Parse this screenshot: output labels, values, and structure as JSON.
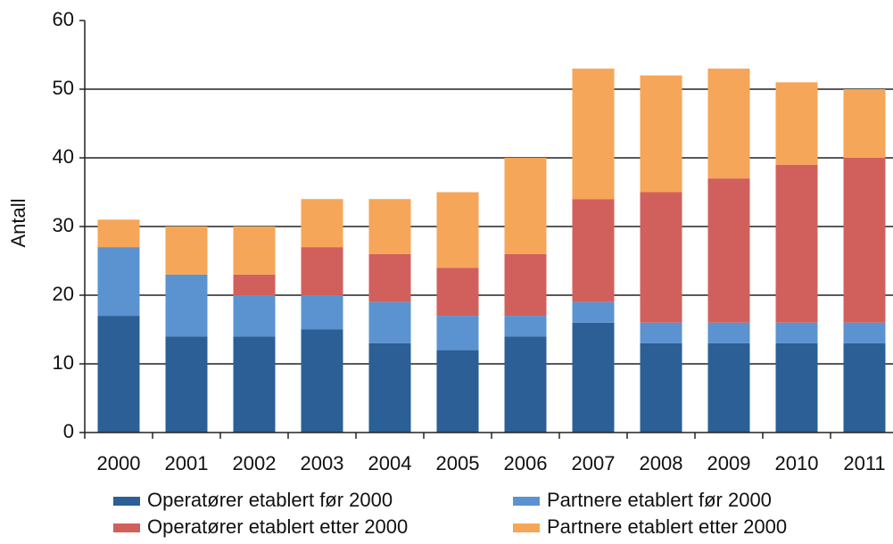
{
  "chart_data": {
    "type": "stacked_bar",
    "y_label": "Antall",
    "categories": [
      "2000",
      "2001",
      "2002",
      "2003",
      "2004",
      "2005",
      "2006",
      "2007",
      "2008",
      "2009",
      "2010",
      "2011"
    ],
    "series": [
      {
        "name": "Operatører etablert før 2000",
        "color": "#2b5f95",
        "values": [
          17,
          14,
          14,
          15,
          13,
          12,
          14,
          16,
          13,
          13,
          13,
          13
        ]
      },
      {
        "name": "Partnere etablert før 2000",
        "color": "#5b93d1",
        "values": [
          10,
          9,
          6,
          5,
          6,
          5,
          3,
          3,
          3,
          3,
          3,
          3
        ]
      },
      {
        "name": "Operatører etablert etter 2000",
        "color": "#d1605d",
        "values": [
          0,
          0,
          3,
          7,
          7,
          7,
          9,
          15,
          19,
          21,
          23,
          24
        ]
      },
      {
        "name": "Partnere etablert etter 2000",
        "color": "#f5a658",
        "values": [
          4,
          7,
          7,
          7,
          8,
          11,
          14,
          19,
          17,
          16,
          12,
          10
        ]
      }
    ],
    "ylim": [
      0,
      60
    ],
    "yticks": [
      0,
      10,
      20,
      30,
      40,
      50,
      60
    ],
    "grid": true
  }
}
